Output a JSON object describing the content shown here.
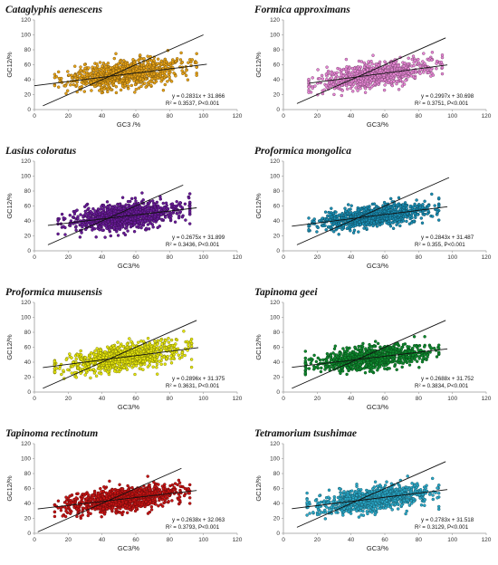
{
  "figure": {
    "charts_in_order": "row-major, two columns"
  },
  "chart_data": [
    {
      "type": "scatter",
      "title": "Cataglyphis aenescens",
      "xlabel": "GC3 /%",
      "ylabel": "GC12/%",
      "xlim": [
        0,
        120
      ],
      "ylim": [
        0,
        120
      ],
      "xticks": [
        "0",
        "20",
        "40",
        "60",
        "80",
        "100",
        "120"
      ],
      "yticks": [
        "0",
        "20",
        "40",
        "60",
        "80",
        "100",
        "120"
      ],
      "point_color": "#E8A317",
      "cloud": {
        "x_range": [
          12,
          96
        ],
        "y_center_slope": 0.2831,
        "y_center_intercept": 31.866,
        "spread": 9,
        "n": 900
      },
      "series": [
        {
          "kind": "regression",
          "slope": 0.2831,
          "intercept": 31.866,
          "x_range": [
            0,
            102
          ]
        },
        {
          "kind": "neutrality_diagonal",
          "slope": 1,
          "intercept": 0,
          "x_range": [
            5,
            100
          ]
        }
      ],
      "annotation": {
        "equation": "y = 0.2831x + 31.866",
        "stats": "R² = 0.3537, P<0.001"
      }
    },
    {
      "type": "scatter",
      "title": "Formica approximans",
      "xlabel": "GC3/%",
      "ylabel": "GC12/%",
      "xlim": [
        0,
        120
      ],
      "ylim": [
        0,
        120
      ],
      "xticks": [
        "0",
        "20",
        "40",
        "60",
        "80",
        "100",
        "120"
      ],
      "yticks": [
        "0",
        "20",
        "40",
        "60",
        "80",
        "100",
        "120"
      ],
      "point_color": "#E887D6",
      "cloud": {
        "x_range": [
          15,
          94
        ],
        "y_center_slope": 0.2997,
        "y_center_intercept": 30.698,
        "spread": 8,
        "n": 800
      },
      "series": [
        {
          "kind": "regression",
          "slope": 0.2997,
          "intercept": 30.698,
          "x_range": [
            15,
            97
          ]
        },
        {
          "kind": "neutrality_diagonal",
          "slope": 1,
          "intercept": 0,
          "x_range": [
            8,
            96
          ]
        }
      ],
      "annotation": {
        "equation": "y = 0.2997x + 30.698",
        "stats": "R² = 0.3751, P<0.001"
      }
    },
    {
      "type": "scatter",
      "title": "Lasius coloratus",
      "xlabel": "GC3/%",
      "ylabel": "GC12/%",
      "xlim": [
        0,
        120
      ],
      "ylim": [
        0,
        120
      ],
      "xticks": [
        "0",
        "20",
        "40",
        "60",
        "80",
        "100",
        "120"
      ],
      "yticks": [
        "0",
        "20",
        "40",
        "60",
        "80",
        "100",
        "120"
      ],
      "point_color": "#6A1B9A",
      "cloud": {
        "x_range": [
          14,
          92
        ],
        "y_center_slope": 0.2675,
        "y_center_intercept": 31.899,
        "spread": 8.5,
        "n": 1000
      },
      "series": [
        {
          "kind": "regression",
          "slope": 0.2675,
          "intercept": 31.899,
          "x_range": [
            8,
            96
          ]
        },
        {
          "kind": "neutrality_diagonal",
          "slope": 1,
          "intercept": 0,
          "x_range": [
            8,
            88
          ]
        }
      ],
      "annotation": {
        "equation": "y = 0.2675x + 31.899",
        "stats": "R² = 0.3436, P<0.001"
      }
    },
    {
      "type": "scatter",
      "title": "Proformica mongolica",
      "xlabel": "GC3/%",
      "ylabel": "GC12/%",
      "xlim": [
        0,
        120
      ],
      "ylim": [
        0,
        120
      ],
      "xticks": [
        "0",
        "20",
        "40",
        "60",
        "80",
        "100",
        "120"
      ],
      "yticks": [
        "0",
        "20",
        "40",
        "60",
        "80",
        "100",
        "120"
      ],
      "point_color": "#1A8FB5",
      "cloud": {
        "x_range": [
          15,
          92
        ],
        "y_center_slope": 0.2843,
        "y_center_intercept": 31.487,
        "spread": 7,
        "n": 900
      },
      "series": [
        {
          "kind": "regression",
          "slope": 0.2843,
          "intercept": 31.487,
          "x_range": [
            5,
            97
          ]
        },
        {
          "kind": "neutrality_diagonal",
          "slope": 1,
          "intercept": 0,
          "x_range": [
            8,
            98
          ]
        }
      ],
      "annotation": {
        "equation": "y = 0.2843x + 31.487",
        "stats": "R² = 0.355, P<0.001"
      }
    },
    {
      "type": "scatter",
      "title": "Proformica muusensis",
      "xlabel": "GC3/%",
      "ylabel": "GC12/%",
      "xlim": [
        0,
        120
      ],
      "ylim": [
        0,
        120
      ],
      "xticks": [
        "0",
        "20",
        "40",
        "60",
        "80",
        "100",
        "120"
      ],
      "yticks": [
        "0",
        "20",
        "40",
        "60",
        "80",
        "100",
        "120"
      ],
      "point_color": "#E8E80C",
      "cloud": {
        "x_range": [
          12,
          93
        ],
        "y_center_slope": 0.2896,
        "y_center_intercept": 31.375,
        "spread": 8.5,
        "n": 900
      },
      "series": [
        {
          "kind": "regression",
          "slope": 0.2896,
          "intercept": 31.375,
          "x_range": [
            5,
            97
          ]
        },
        {
          "kind": "neutrality_diagonal",
          "slope": 1,
          "intercept": 0,
          "x_range": [
            5,
            96
          ]
        }
      ],
      "annotation": {
        "equation": "y = 0.2896x + 31.375",
        "stats": "R² = 0.3631, P<0.001"
      }
    },
    {
      "type": "scatter",
      "title": "Tapinoma geei",
      "xlabel": "GC3/%",
      "ylabel": "GC12/%",
      "xlim": [
        0,
        120
      ],
      "ylim": [
        0,
        120
      ],
      "xticks": [
        "0",
        "20",
        "40",
        "60",
        "80",
        "100",
        "120"
      ],
      "yticks": [
        "0",
        "20",
        "40",
        "60",
        "80",
        "100",
        "120"
      ],
      "point_color": "#0E8A2E",
      "cloud": {
        "x_range": [
          13,
          92
        ],
        "y_center_slope": 0.2688,
        "y_center_intercept": 31.752,
        "spread": 7.5,
        "n": 900
      },
      "series": [
        {
          "kind": "regression",
          "slope": 0.2688,
          "intercept": 31.752,
          "x_range": [
            5,
            97
          ]
        },
        {
          "kind": "neutrality_diagonal",
          "slope": 1,
          "intercept": 0,
          "x_range": [
            5,
            96
          ]
        }
      ],
      "annotation": {
        "equation": "y = 0.2688x + 31.752",
        "stats": "R² = 0.3834, P<0.001"
      }
    },
    {
      "type": "scatter",
      "title": "Tapinoma rectinotum",
      "xlabel": "GC3/%",
      "ylabel": "GC12/%",
      "xlim": [
        0,
        120
      ],
      "ylim": [
        0,
        120
      ],
      "xticks": [
        "0",
        "20",
        "40",
        "60",
        "80",
        "100",
        "120"
      ],
      "yticks": [
        "0",
        "20",
        "40",
        "60",
        "80",
        "100",
        "120"
      ],
      "point_color": "#C81414",
      "cloud": {
        "x_range": [
          12,
          92
        ],
        "y_center_slope": 0.2638,
        "y_center_intercept": 32.063,
        "spread": 7.5,
        "n": 1000
      },
      "series": [
        {
          "kind": "regression",
          "slope": 0.2638,
          "intercept": 32.063,
          "x_range": [
            2,
            96
          ]
        },
        {
          "kind": "neutrality_diagonal",
          "slope": 1,
          "intercept": 0,
          "x_range": [
            2,
            87
          ]
        }
      ],
      "annotation": {
        "equation": "y = 0.2638x + 32.063",
        "stats": "R² = 0.3793, P<0.001"
      }
    },
    {
      "type": "scatter",
      "title": "Tetramorium tsushimae",
      "xlabel": "GC3/%",
      "ylabel": "GC12/%",
      "xlim": [
        0,
        120
      ],
      "ylim": [
        0,
        120
      ],
      "xticks": [
        "0",
        "20",
        "40",
        "60",
        "80",
        "100",
        "120"
      ],
      "yticks": [
        "0",
        "20",
        "40",
        "60",
        "80",
        "100",
        "120"
      ],
      "point_color": "#2AA9C9",
      "cloud": {
        "x_range": [
          14,
          92
        ],
        "y_center_slope": 0.2783,
        "y_center_intercept": 31.518,
        "spread": 8,
        "n": 900
      },
      "series": [
        {
          "kind": "regression",
          "slope": 0.2783,
          "intercept": 31.518,
          "x_range": [
            5,
            97
          ]
        },
        {
          "kind": "neutrality_diagonal",
          "slope": 1,
          "intercept": 0,
          "x_range": [
            8,
            96
          ]
        }
      ],
      "annotation": {
        "equation": "y = 0.2783x + 31.518",
        "stats": "R² = 0.3129, P<0.001"
      }
    }
  ]
}
